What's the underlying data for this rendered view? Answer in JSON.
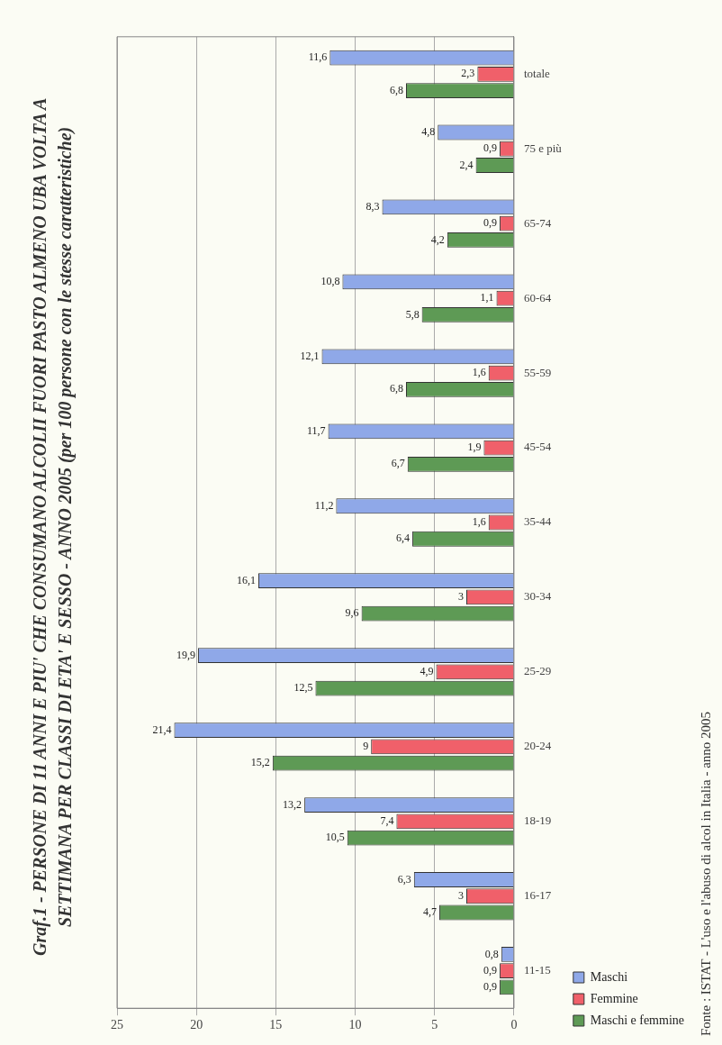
{
  "chart_data": {
    "type": "bar",
    "orientation": "horizontal",
    "title": "Graf.1 - PERSONE DI 11 ANNI E PIU' CHE CONSUMANO ALCOLII FUORI PASTO ALMENO UBA VOLTA A SETTIMANA PER CLASSI DI ETA' E SESSO - ANNO 2005 (per 100 persone con le stesse caratteristiche)",
    "categories": [
      "totale",
      "75 e più",
      "65-74",
      "60-64",
      "55-59",
      "45-54",
      "35-44",
      "30-34",
      "25-29",
      "20-24",
      "18-19",
      "16-17",
      "11-15"
    ],
    "series": [
      {
        "name": "Maschi",
        "color": "#8fa8e8",
        "values": [
          11.6,
          4.8,
          8.3,
          10.8,
          12.1,
          11.7,
          11.2,
          16.1,
          19.9,
          21.4,
          13.2,
          6.3,
          0.8
        ],
        "value_labels": [
          "11,6",
          "4,8",
          "8,3",
          "10,8",
          "12,1",
          "11,7",
          "11,2",
          "16,1",
          "19,9",
          "21,4",
          "13,2",
          "6,3",
          "0,8"
        ]
      },
      {
        "name": "Femmine",
        "color": "#f0606a",
        "values": [
          2.3,
          0.9,
          0.9,
          1.1,
          1.6,
          1.9,
          1.6,
          3,
          4.9,
          9,
          7.4,
          3,
          0.9
        ],
        "value_labels": [
          "2,3",
          "0,9",
          "0,9",
          "1,1",
          "1,6",
          "1,9",
          "1,6",
          "3",
          "4,9",
          "9",
          "7,4",
          "3",
          "0,9"
        ]
      },
      {
        "name": "Maschi e femmine",
        "color": "#5e9a55",
        "values": [
          6.8,
          2.4,
          4.2,
          5.8,
          6.8,
          6.7,
          6.4,
          9.6,
          12.5,
          15.2,
          10.5,
          4.7,
          0.9
        ],
        "value_labels": [
          "6,8",
          "2,4",
          "4,2",
          "5,8",
          "6,8",
          "6,7",
          "6,4",
          "9,6",
          "12,5",
          "15,2",
          "10,5",
          "4,7",
          "0,9"
        ]
      }
    ],
    "xlim": [
      25,
      0
    ],
    "xticks": [
      25,
      20,
      15,
      10,
      5,
      0
    ],
    "grid": "x",
    "legend": "right",
    "annotations": [
      "Fonte : ISTAT - L'uso e l'abuso di alcol in Italia - anno 2005"
    ]
  }
}
